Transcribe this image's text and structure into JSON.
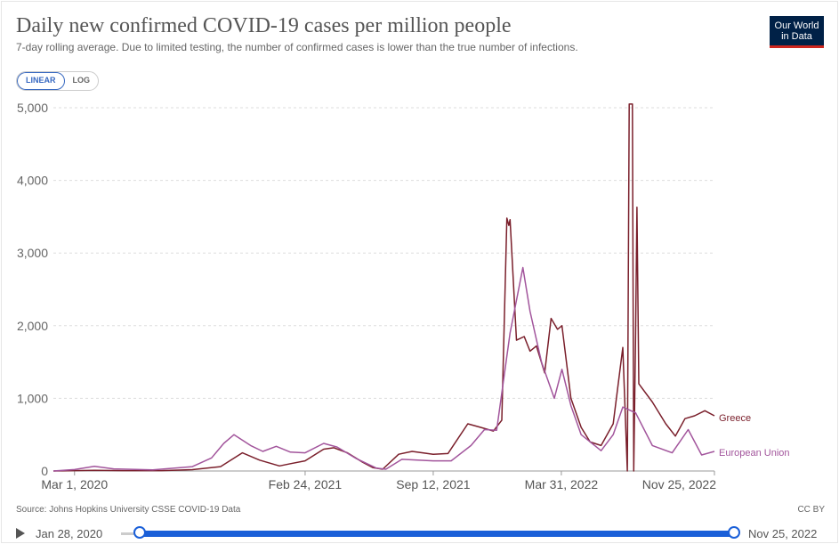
{
  "header": {
    "title": "Daily new confirmed COVID-19 cases per million people",
    "subtitle": "7-day rolling average. Due to limited testing, the number of confirmed cases is lower than the true number of infections.",
    "logo_line1": "Our World",
    "logo_line2": "in Data"
  },
  "scale_toggle": {
    "linear": "LINEAR",
    "log": "LOG",
    "selected": "linear"
  },
  "footer": {
    "source": "Source: Johns Hopkins University CSSE COVID-19 Data",
    "license": "CC BY"
  },
  "timeline": {
    "start_label": "Jan 28, 2020",
    "end_label": "Nov 25, 2022",
    "start_fraction": 0.0,
    "end_fraction": 1.0
  },
  "chart_data": {
    "type": "line",
    "title": "Daily new confirmed COVID-19 cases per million people",
    "ylim": [
      0,
      5000
    ],
    "xlim": [
      "2020-01-28",
      "2022-11-25"
    ],
    "y_ticks": [
      0,
      1000,
      2000,
      3000,
      4000,
      5000
    ],
    "y_tick_labels": [
      "0",
      "1,000",
      "2,000",
      "3,000",
      "4,000",
      "5,000"
    ],
    "x_ticks": [
      "2020-03-01",
      "2021-02-24",
      "2021-09-12",
      "2022-03-31",
      "2022-11-25"
    ],
    "x_tick_labels": [
      "Mar 1, 2020",
      "Feb 24, 2021",
      "Sep 12, 2021",
      "Mar 31, 2022",
      "Nov 25, 2022"
    ],
    "grid": "horizontal dashed",
    "legend": "line-end labels",
    "series": [
      {
        "name": "Greece",
        "color": "#7a1f2b",
        "points": [
          [
            "2020-01-28",
            0
          ],
          [
            "2020-03-01",
            5
          ],
          [
            "2020-04-01",
            8
          ],
          [
            "2020-05-15",
            5
          ],
          [
            "2020-07-15",
            5
          ],
          [
            "2020-09-01",
            18
          ],
          [
            "2020-10-15",
            60
          ],
          [
            "2020-11-18",
            250
          ],
          [
            "2020-12-15",
            150
          ],
          [
            "2021-01-15",
            70
          ],
          [
            "2021-02-01",
            100
          ],
          [
            "2021-02-24",
            140
          ],
          [
            "2021-03-25",
            300
          ],
          [
            "2021-04-10",
            320
          ],
          [
            "2021-05-01",
            250
          ],
          [
            "2021-05-25",
            120
          ],
          [
            "2021-06-10",
            45
          ],
          [
            "2021-06-25",
            25
          ],
          [
            "2021-07-20",
            230
          ],
          [
            "2021-08-10",
            270
          ],
          [
            "2021-09-12",
            230
          ],
          [
            "2021-10-05",
            240
          ],
          [
            "2021-11-05",
            650
          ],
          [
            "2021-11-25",
            600
          ],
          [
            "2021-12-15",
            550
          ],
          [
            "2021-12-28",
            700
          ],
          [
            "2022-01-05",
            3480
          ],
          [
            "2022-01-08",
            3380
          ],
          [
            "2022-01-10",
            3460
          ],
          [
            "2022-01-20",
            1800
          ],
          [
            "2022-02-01",
            1850
          ],
          [
            "2022-02-10",
            1650
          ],
          [
            "2022-02-20",
            1720
          ],
          [
            "2022-03-05",
            1350
          ],
          [
            "2022-03-15",
            2100
          ],
          [
            "2022-03-25",
            1950
          ],
          [
            "2022-04-01",
            2000
          ],
          [
            "2022-04-15",
            1000
          ],
          [
            "2022-05-01",
            600
          ],
          [
            "2022-05-15",
            400
          ],
          [
            "2022-06-01",
            350
          ],
          [
            "2022-06-20",
            650
          ],
          [
            "2022-07-05",
            1700
          ],
          [
            "2022-07-12",
            0
          ],
          [
            "2022-07-15",
            5050
          ],
          [
            "2022-07-20",
            5050
          ],
          [
            "2022-07-22",
            0
          ],
          [
            "2022-07-25",
            1900
          ],
          [
            "2022-07-27",
            3630
          ],
          [
            "2022-07-30",
            1200
          ],
          [
            "2022-08-20",
            950
          ],
          [
            "2022-09-10",
            650
          ],
          [
            "2022-09-25",
            480
          ],
          [
            "2022-10-10",
            720
          ],
          [
            "2022-10-25",
            760
          ],
          [
            "2022-11-10",
            830
          ],
          [
            "2022-11-25",
            760
          ]
        ]
      },
      {
        "name": "European Union",
        "color": "#a2559c",
        "points": [
          [
            "2020-01-28",
            0
          ],
          [
            "2020-03-01",
            20
          ],
          [
            "2020-04-01",
            65
          ],
          [
            "2020-05-01",
            30
          ],
          [
            "2020-07-01",
            15
          ],
          [
            "2020-09-01",
            60
          ],
          [
            "2020-10-01",
            180
          ],
          [
            "2020-10-20",
            380
          ],
          [
            "2020-11-05",
            500
          ],
          [
            "2020-12-01",
            350
          ],
          [
            "2020-12-20",
            270
          ],
          [
            "2021-01-10",
            340
          ],
          [
            "2021-02-01",
            260
          ],
          [
            "2021-02-24",
            250
          ],
          [
            "2021-03-25",
            380
          ],
          [
            "2021-04-15",
            330
          ],
          [
            "2021-05-15",
            170
          ],
          [
            "2021-06-15",
            40
          ],
          [
            "2021-06-30",
            25
          ],
          [
            "2021-07-25",
            160
          ],
          [
            "2021-09-12",
            140
          ],
          [
            "2021-10-10",
            140
          ],
          [
            "2021-11-10",
            350
          ],
          [
            "2021-12-01",
            570
          ],
          [
            "2021-12-20",
            560
          ],
          [
            "2022-01-10",
            1900
          ],
          [
            "2022-01-30",
            2800
          ],
          [
            "2022-02-10",
            2200
          ],
          [
            "2022-02-28",
            1500
          ],
          [
            "2022-03-20",
            1000
          ],
          [
            "2022-04-01",
            1400
          ],
          [
            "2022-04-15",
            900
          ],
          [
            "2022-05-01",
            500
          ],
          [
            "2022-06-01",
            280
          ],
          [
            "2022-06-20",
            500
          ],
          [
            "2022-07-05",
            880
          ],
          [
            "2022-07-25",
            800
          ],
          [
            "2022-08-20",
            350
          ],
          [
            "2022-09-20",
            250
          ],
          [
            "2022-10-15",
            570
          ],
          [
            "2022-11-05",
            220
          ],
          [
            "2022-11-25",
            270
          ]
        ]
      }
    ]
  }
}
